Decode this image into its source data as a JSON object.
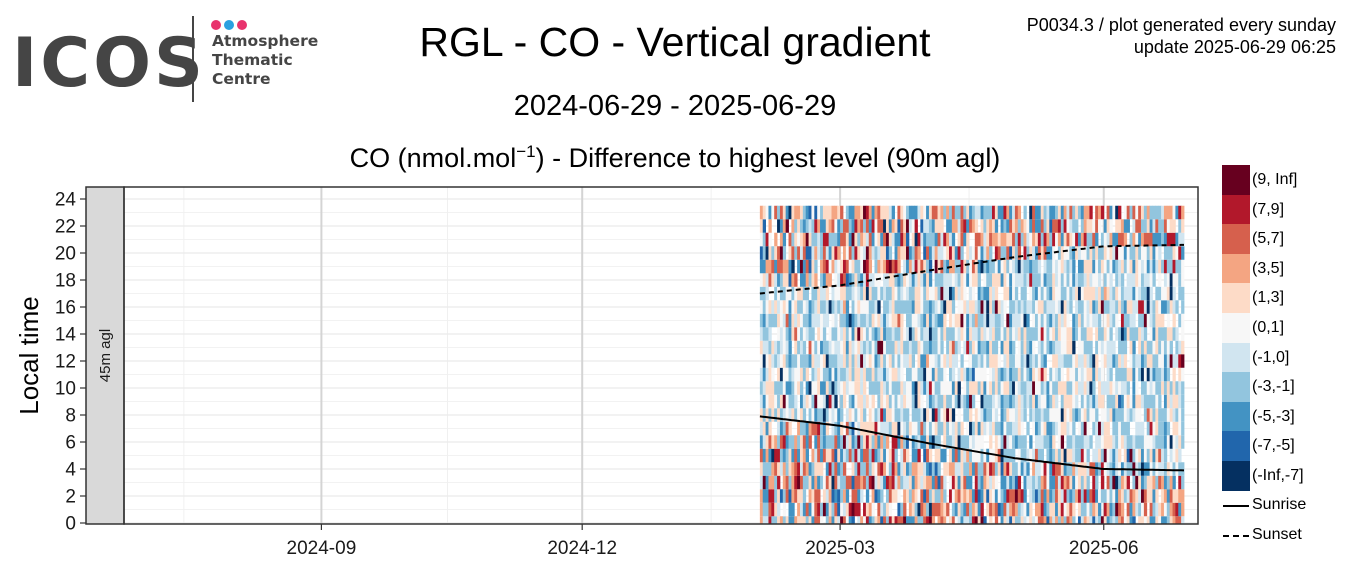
{
  "logo": {
    "name": "ICOS",
    "line1": "Atmosphere",
    "line2": "Thematic",
    "line3": "Centre",
    "dot_colors": [
      "#e8336d",
      "#2ba0e0",
      "#e8336d"
    ]
  },
  "header": {
    "title": "RGL - CO - Vertical gradient",
    "date_range": "2024-06-29 - 2025-06-29",
    "subtitle_pre": "CO (nmol.mol",
    "subtitle_sup": "−1",
    "subtitle_post": ") - Difference to highest level (90m agl)",
    "meta_line1": "P0034.3 / plot generated every sunday",
    "meta_line2": "update  2025-06-29 06:25"
  },
  "chart_data": {
    "type": "heatmap",
    "ylabel": "Local time",
    "facet_label": "45m agl",
    "x_range": [
      "2024-06-29",
      "2025-06-29"
    ],
    "y_range": [
      0,
      24
    ],
    "x_ticks": [
      "2024-09",
      "2024-12",
      "2025-03",
      "2025-06"
    ],
    "y_ticks": [
      0,
      2,
      4,
      6,
      8,
      10,
      12,
      14,
      16,
      18,
      20,
      22,
      24
    ],
    "data_start": "2025-02-01",
    "data_end": "2025-06-29",
    "bins": [
      {
        "label": "(9, Inf]",
        "color": "#67001f"
      },
      {
        "label": "(7,9]",
        "color": "#b2182b"
      },
      {
        "label": "(5,7]",
        "color": "#d6604d"
      },
      {
        "label": "(3,5]",
        "color": "#f4a582"
      },
      {
        "label": "(1,3]",
        "color": "#fddbc7"
      },
      {
        "label": "(0,1]",
        "color": "#f7f7f7"
      },
      {
        "label": "(-1,0]",
        "color": "#d1e5f0"
      },
      {
        "label": "(-3,-1]",
        "color": "#92c5de"
      },
      {
        "label": "(-5,-3]",
        "color": "#4393c3"
      },
      {
        "label": "(-7,-5]",
        "color": "#2166ac"
      },
      {
        "label": "(-Inf,-7]",
        "color": "#053061"
      }
    ],
    "sunrise": {
      "label": "Sunrise",
      "points": [
        [
          "2025-02-01",
          7.9
        ],
        [
          "2025-03-01",
          7.2
        ],
        [
          "2025-04-01",
          5.9
        ],
        [
          "2025-05-01",
          4.8
        ],
        [
          "2025-06-01",
          4.0
        ],
        [
          "2025-06-29",
          3.9
        ]
      ]
    },
    "sunset": {
      "label": "Sunset",
      "points": [
        [
          "2025-02-01",
          17.0
        ],
        [
          "2025-03-01",
          17.6
        ],
        [
          "2025-04-01",
          18.7
        ],
        [
          "2025-05-01",
          19.7
        ],
        [
          "2025-06-01",
          20.5
        ],
        [
          "2025-06-29",
          20.6
        ]
      ]
    }
  }
}
